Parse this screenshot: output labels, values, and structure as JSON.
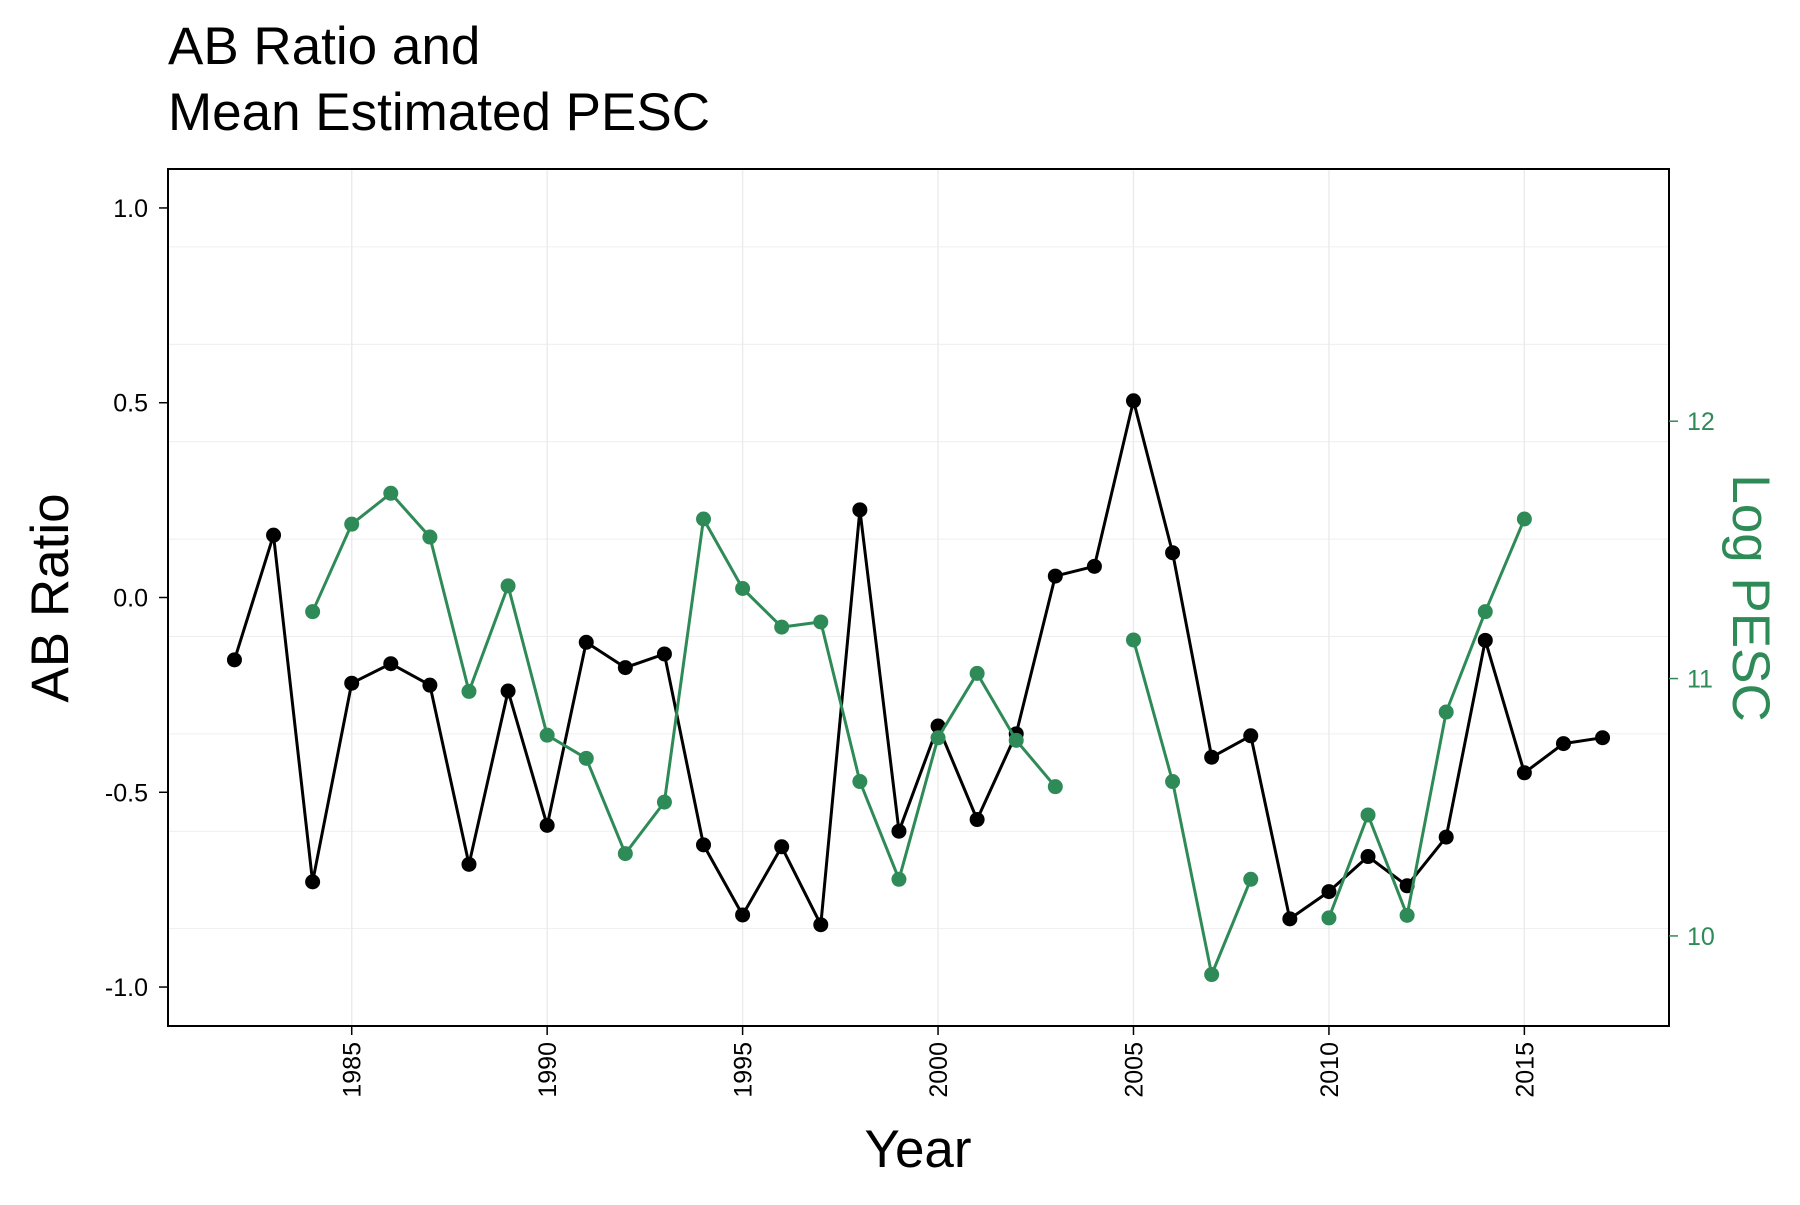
{
  "chart_data": {
    "type": "line",
    "title_lines": [
      "AB Ratio and",
      "Mean Estimated PESC"
    ],
    "xlabel": "Year",
    "ylabel": "AB Ratio",
    "y2label": "Log PESC",
    "xlim": [
      1980.3,
      2018.7
    ],
    "ylim": [
      -1.1,
      1.1
    ],
    "y2lim": [
      9.65,
      12.98
    ],
    "x_ticks": [
      1985,
      1990,
      1995,
      2000,
      2005,
      2010,
      2015
    ],
    "y_ticks": [
      1.0,
      0.5,
      0.0,
      -0.5,
      -1.0
    ],
    "y_tick_labels": [
      "1.0",
      "0.5",
      "0.0",
      "-0.5",
      "-1.0"
    ],
    "y2_ticks": [
      12,
      11,
      10
    ],
    "y2_tick_labels": [
      "12",
      "11",
      "10"
    ],
    "grid": true,
    "colors": {
      "ab_ratio": "#000000",
      "log_pesc": "#2e8b57",
      "grid": "#ebebeb",
      "axis": "#000000"
    },
    "series": [
      {
        "key": "ab_ratio",
        "axis": "left",
        "segments": [
          [
            {
              "x": 1982,
              "y": -0.16
            },
            {
              "x": 1983,
              "y": 0.16
            },
            {
              "x": 1984,
              "y": -0.73
            },
            {
              "x": 1985,
              "y": -0.22
            },
            {
              "x": 1986,
              "y": -0.17
            },
            {
              "x": 1987,
              "y": -0.225
            },
            {
              "x": 1988,
              "y": -0.685
            },
            {
              "x": 1989,
              "y": -0.24
            },
            {
              "x": 1990,
              "y": -0.585
            },
            {
              "x": 1991,
              "y": -0.115
            },
            {
              "x": 1992,
              "y": -0.18
            },
            {
              "x": 1993,
              "y": -0.145
            },
            {
              "x": 1994,
              "y": -0.635
            },
            {
              "x": 1995,
              "y": -0.815
            },
            {
              "x": 1996,
              "y": -0.64
            },
            {
              "x": 1997,
              "y": -0.84
            },
            {
              "x": 1998,
              "y": 0.225
            },
            {
              "x": 1999,
              "y": -0.6
            },
            {
              "x": 2000,
              "y": -0.33
            },
            {
              "x": 2001,
              "y": -0.57
            },
            {
              "x": 2002,
              "y": -0.35
            },
            {
              "x": 2003,
              "y": 0.055
            },
            {
              "x": 2004,
              "y": 0.08
            },
            {
              "x": 2005,
              "y": 0.505
            },
            {
              "x": 2006,
              "y": 0.115
            },
            {
              "x": 2007,
              "y": -0.41
            },
            {
              "x": 2008,
              "y": -0.355
            },
            {
              "x": 2009,
              "y": -0.825
            },
            {
              "x": 2010,
              "y": -0.755
            },
            {
              "x": 2011,
              "y": -0.665
            },
            {
              "x": 2012,
              "y": -0.74
            },
            {
              "x": 2013,
              "y": -0.615
            },
            {
              "x": 2014,
              "y": -0.11
            },
            {
              "x": 2015,
              "y": -0.45
            },
            {
              "x": 2016,
              "y": -0.375
            },
            {
              "x": 2017,
              "y": -0.36
            }
          ]
        ]
      },
      {
        "key": "log_pesc",
        "axis": "right",
        "segments": [
          [
            {
              "x": 1984,
              "y": 11.26
            },
            {
              "x": 1985,
              "y": 11.6
            },
            {
              "x": 1986,
              "y": 11.72
            },
            {
              "x": 1987,
              "y": 11.55
            },
            {
              "x": 1988,
              "y": 10.95
            },
            {
              "x": 1989,
              "y": 11.36
            },
            {
              "x": 1990,
              "y": 10.78
            },
            {
              "x": 1991,
              "y": 10.69
            },
            {
              "x": 1992,
              "y": 10.32
            },
            {
              "x": 1993,
              "y": 10.52
            },
            {
              "x": 1994,
              "y": 11.62
            },
            {
              "x": 1995,
              "y": 11.35
            },
            {
              "x": 1996,
              "y": 11.2
            },
            {
              "x": 1997,
              "y": 11.22
            },
            {
              "x": 1998,
              "y": 10.6
            },
            {
              "x": 1999,
              "y": 10.22
            },
            {
              "x": 2000,
              "y": 10.77
            },
            {
              "x": 2001,
              "y": 11.02
            },
            {
              "x": 2002,
              "y": 10.76
            },
            {
              "x": 2003,
              "y": 10.58
            }
          ],
          [
            {
              "x": 2005,
              "y": 11.15
            },
            {
              "x": 2006,
              "y": 10.6
            },
            {
              "x": 2007,
              "y": 9.85
            },
            {
              "x": 2008,
              "y": 10.22
            }
          ],
          [
            {
              "x": 2010,
              "y": 10.07
            },
            {
              "x": 2011,
              "y": 10.47
            },
            {
              "x": 2012,
              "y": 10.08
            },
            {
              "x": 2013,
              "y": 10.87
            },
            {
              "x": 2014,
              "y": 11.26
            },
            {
              "x": 2015,
              "y": 11.62
            }
          ]
        ]
      }
    ]
  }
}
